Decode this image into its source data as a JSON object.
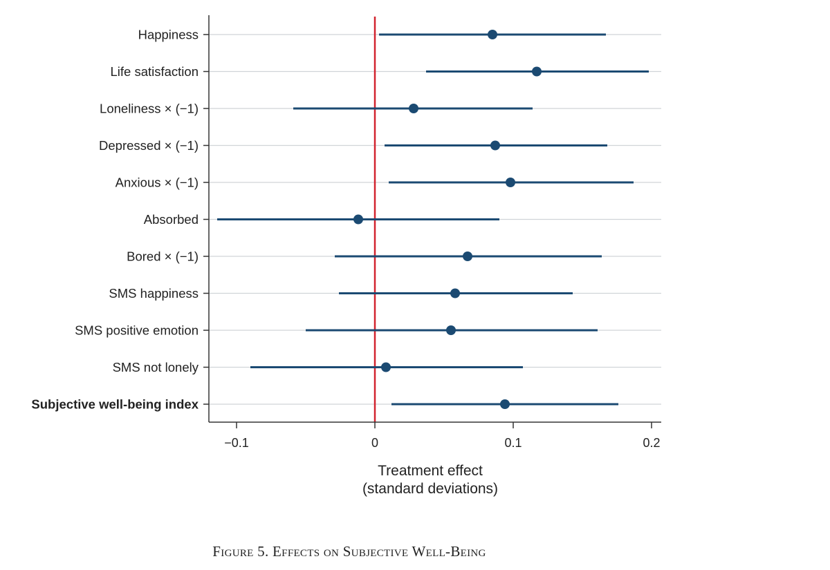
{
  "chart_data": {
    "type": "coefficient-plot",
    "title": "Figure 5. Effects on Subjective Well-Being",
    "xlabel_line1": "Treatment effect",
    "xlabel_line2": "(standard deviations)",
    "xlim": [
      -0.12,
      0.207
    ],
    "xticks": [
      {
        "value": -0.1,
        "label": "−0.1"
      },
      {
        "value": 0,
        "label": "0"
      },
      {
        "value": 0.1,
        "label": "0.1"
      },
      {
        "value": 0.2,
        "label": "0.2"
      }
    ],
    "reference_line": 0,
    "grid": true,
    "series": [
      {
        "name": "Happiness",
        "estimate": 0.085,
        "ci_low": 0.003,
        "ci_high": 0.167,
        "bold": false
      },
      {
        "name": "Life satisfaction",
        "estimate": 0.117,
        "ci_low": 0.037,
        "ci_high": 0.198,
        "bold": false
      },
      {
        "name": "Loneliness × (−1)",
        "estimate": 0.028,
        "ci_low": -0.059,
        "ci_high": 0.114,
        "bold": false
      },
      {
        "name": "Depressed × (−1)",
        "estimate": 0.087,
        "ci_low": 0.007,
        "ci_high": 0.168,
        "bold": false
      },
      {
        "name": "Anxious × (−1)",
        "estimate": 0.098,
        "ci_low": 0.01,
        "ci_high": 0.187,
        "bold": false
      },
      {
        "name": "Absorbed",
        "estimate": -0.012,
        "ci_low": -0.114,
        "ci_high": 0.09,
        "bold": false
      },
      {
        "name": "Bored × (−1)",
        "estimate": 0.067,
        "ci_low": -0.029,
        "ci_high": 0.164,
        "bold": false
      },
      {
        "name": "SMS happiness",
        "estimate": 0.058,
        "ci_low": -0.026,
        "ci_high": 0.143,
        "bold": false
      },
      {
        "name": "SMS positive emotion",
        "estimate": 0.055,
        "ci_low": -0.05,
        "ci_high": 0.161,
        "bold": false
      },
      {
        "name": "SMS not lonely",
        "estimate": 0.008,
        "ci_low": -0.09,
        "ci_high": 0.107,
        "bold": false
      },
      {
        "name": "Subjective well-being index",
        "estimate": 0.094,
        "ci_low": 0.012,
        "ci_high": 0.176,
        "bold": true
      }
    ],
    "colors": {
      "point": "#1b4a72",
      "ci_line": "#1b4a72",
      "reference_line": "#d2222e",
      "grid": "#d0d4d8",
      "axis": "#333333"
    }
  }
}
